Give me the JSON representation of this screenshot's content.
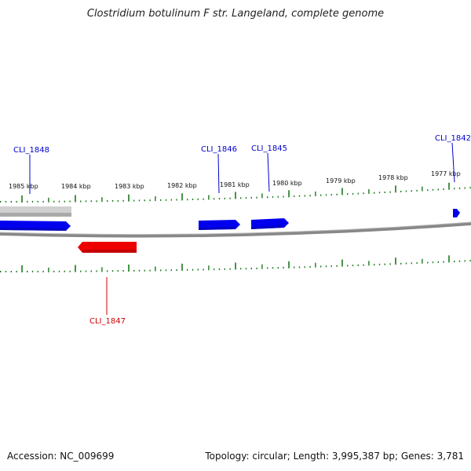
{
  "title": "Clostridium botulinum F str. Langeland, complete genome",
  "footer": {
    "accession": "Accession: NC_009699",
    "summary": "Topology: circular; Length: 3,995,387 bp; Genes: 3,781"
  },
  "colors": {
    "forward_gene": "#0000ee",
    "reverse_gene": "#ee0000",
    "pseudo_track": "#c0c0c0",
    "tick": "#1a7a1a",
    "backbone": "#777777",
    "forward_label": "#0000cc",
    "reverse_label": "#cc0000"
  },
  "scale_labels": [
    "1985 kbp",
    "1984 kbp",
    "1983 kbp",
    "1982 kbp",
    "1981 kbp",
    "1980 kbp",
    "1979 kbp",
    "1978 kbp",
    "1977 kbp"
  ],
  "gene_labels": {
    "forward": [
      "CLI_1848",
      "CLI_1846",
      "CLI_1845",
      "CLI_1842"
    ],
    "reverse": [
      "CLI_1847"
    ]
  }
}
